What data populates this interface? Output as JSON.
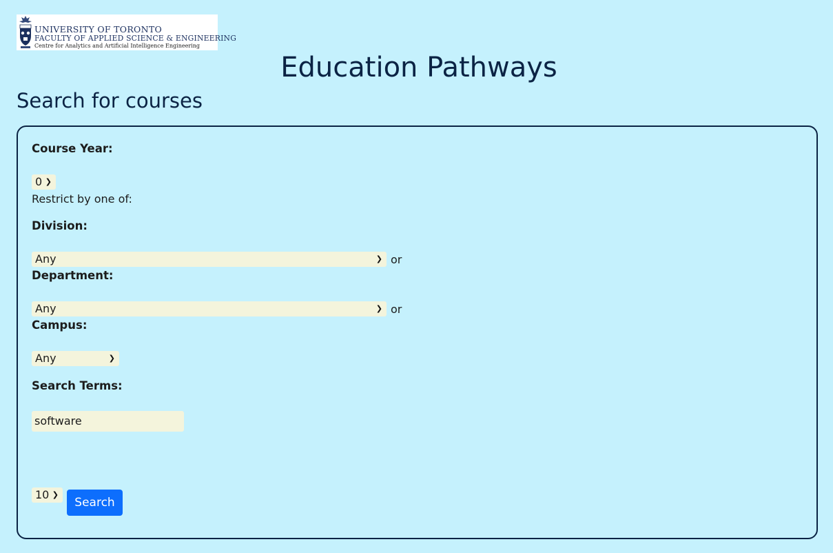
{
  "logo": {
    "line1": "UNIVERSITY OF TORONTO",
    "line2": "FACULTY OF APPLIED SCIENCE & ENGINEERING",
    "line3": "Centre for Analytics and Artificial Intelligence Engineering"
  },
  "title": "Education Pathways",
  "subtitle": "Search for courses",
  "form": {
    "course_year_label": "Course Year:",
    "course_year_value": "0",
    "restrict_text": "Restrict by one of:",
    "division_label": "Division:",
    "division_value": "Any",
    "or_text": "or",
    "department_label": "Department:",
    "department_value": "Any",
    "campus_label": "Campus:",
    "campus_value": "Any",
    "search_terms_label": "Search Terms:",
    "search_terms_value": "software",
    "results_count_value": "10",
    "search_button": "Search"
  },
  "colors": {
    "background": "#c5f1fd",
    "input_bg": "#f4f4dc",
    "button": "#0d6efd",
    "text": "#0b2344"
  }
}
